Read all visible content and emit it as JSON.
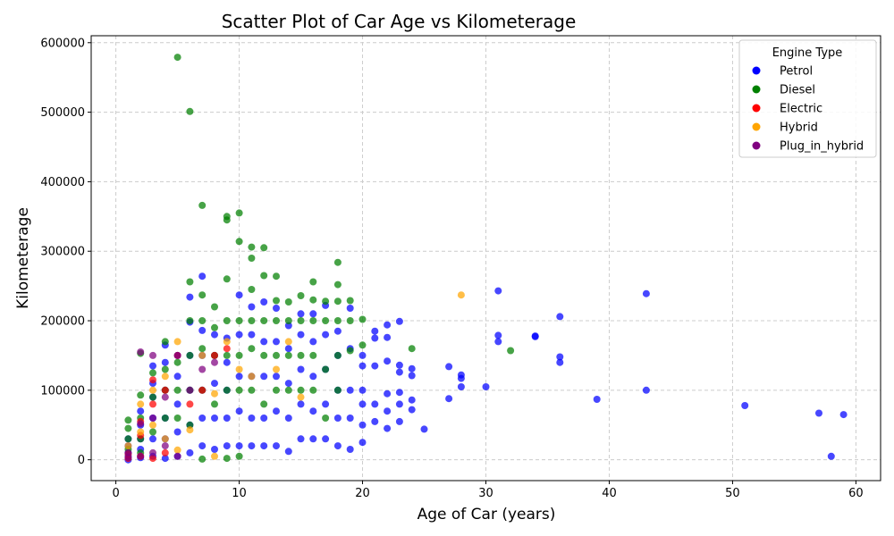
{
  "chart_data": {
    "type": "scatter",
    "title": "Scatter Plot of Car Age vs Kilometerage",
    "xlabel": "Age of Car (years)",
    "ylabel": "Kilometerage",
    "xlim": [
      -2,
      62
    ],
    "ylim": [
      -30000,
      610000
    ],
    "xticks": [
      "0",
      "10",
      "20",
      "30",
      "40",
      "50",
      "60"
    ],
    "yticks": [
      "0",
      "100000",
      "200000",
      "300000",
      "400000",
      "500000",
      "600000"
    ],
    "grid": true,
    "legend": {
      "title": "Engine Type",
      "placement": "top-right"
    },
    "series": [
      {
        "name": "Petrol",
        "color": "#0000ff",
        "points": [
          [
            1,
            0
          ],
          [
            1,
            5000
          ],
          [
            1,
            10000
          ],
          [
            1,
            20000
          ],
          [
            1,
            30000
          ],
          [
            2,
            3000
          ],
          [
            2,
            15000
          ],
          [
            2,
            30000
          ],
          [
            2,
            50000
          ],
          [
            2,
            70000
          ],
          [
            3,
            5000
          ],
          [
            3,
            30000
          ],
          [
            3,
            60000
          ],
          [
            3,
            90000
          ],
          [
            3,
            110000
          ],
          [
            3,
            135000
          ],
          [
            4,
            2000
          ],
          [
            4,
            30000
          ],
          [
            4,
            60000
          ],
          [
            4,
            100000
          ],
          [
            4,
            140000
          ],
          [
            4,
            165000
          ],
          [
            5,
            5000
          ],
          [
            5,
            40000
          ],
          [
            5,
            80000
          ],
          [
            5,
            120000
          ],
          [
            5,
            150000
          ],
          [
            6,
            10000
          ],
          [
            6,
            50000
          ],
          [
            6,
            100000
          ],
          [
            6,
            150000
          ],
          [
            6,
            198000
          ],
          [
            6,
            234000
          ],
          [
            7,
            20000
          ],
          [
            7,
            60000
          ],
          [
            7,
            100000
          ],
          [
            7,
            150000
          ],
          [
            7,
            186000
          ],
          [
            7,
            264000
          ],
          [
            8,
            15000
          ],
          [
            8,
            60000
          ],
          [
            8,
            110000
          ],
          [
            8,
            150000
          ],
          [
            8,
            180000
          ],
          [
            9,
            20000
          ],
          [
            9,
            60000
          ],
          [
            9,
            100000
          ],
          [
            9,
            140000
          ],
          [
            9,
            175000
          ],
          [
            10,
            20000
          ],
          [
            10,
            70000
          ],
          [
            10,
            120000
          ],
          [
            10,
            180000
          ],
          [
            10,
            237000
          ],
          [
            11,
            20000
          ],
          [
            11,
            60000
          ],
          [
            11,
            120000
          ],
          [
            11,
            180000
          ],
          [
            11,
            220000
          ],
          [
            12,
            20000
          ],
          [
            12,
            60000
          ],
          [
            12,
            120000
          ],
          [
            12,
            170000
          ],
          [
            12,
            227000
          ],
          [
            13,
            20000
          ],
          [
            13,
            70000
          ],
          [
            13,
            120000
          ],
          [
            13,
            170000
          ],
          [
            13,
            218000
          ],
          [
            14,
            12000
          ],
          [
            14,
            60000
          ],
          [
            14,
            110000
          ],
          [
            14,
            160000
          ],
          [
            14,
            193000
          ],
          [
            15,
            30000
          ],
          [
            15,
            80000
          ],
          [
            15,
            130000
          ],
          [
            15,
            180000
          ],
          [
            15,
            210000
          ],
          [
            16,
            30000
          ],
          [
            16,
            70000
          ],
          [
            16,
            120000
          ],
          [
            16,
            170000
          ],
          [
            16,
            210000
          ],
          [
            17,
            30000
          ],
          [
            17,
            80000
          ],
          [
            17,
            130000
          ],
          [
            17,
            180000
          ],
          [
            17,
            222000
          ],
          [
            18,
            20000
          ],
          [
            18,
            60000
          ],
          [
            18,
            100000
          ],
          [
            18,
            150000
          ],
          [
            18,
            185000
          ],
          [
            19,
            15000
          ],
          [
            19,
            60000
          ],
          [
            19,
            100000
          ],
          [
            19,
            160000
          ],
          [
            19,
            218000
          ],
          [
            20,
            25000
          ],
          [
            20,
            50000
          ],
          [
            20,
            80000
          ],
          [
            20,
            100000
          ],
          [
            20,
            135000
          ],
          [
            20,
            150000
          ],
          [
            21,
            55000
          ],
          [
            21,
            80000
          ],
          [
            21,
            135000
          ],
          [
            21,
            175000
          ],
          [
            21,
            185000
          ],
          [
            22,
            45000
          ],
          [
            22,
            70000
          ],
          [
            22,
            95000
          ],
          [
            22,
            142000
          ],
          [
            22,
            176000
          ],
          [
            22,
            194000
          ],
          [
            23,
            55000
          ],
          [
            23,
            80000
          ],
          [
            23,
            97000
          ],
          [
            23,
            126000
          ],
          [
            23,
            136000
          ],
          [
            23,
            199000
          ],
          [
            24,
            72000
          ],
          [
            24,
            86000
          ],
          [
            24,
            121000
          ],
          [
            24,
            131000
          ],
          [
            25,
            44000
          ],
          [
            27,
            88000
          ],
          [
            27,
            134000
          ],
          [
            28,
            105000
          ],
          [
            28,
            117000
          ],
          [
            28,
            122000
          ],
          [
            30,
            105000
          ],
          [
            31,
            170000
          ],
          [
            31,
            179000
          ],
          [
            31,
            243000
          ],
          [
            34,
            177000
          ],
          [
            34,
            178000
          ],
          [
            36,
            140000
          ],
          [
            36,
            148000
          ],
          [
            36,
            206000
          ],
          [
            39,
            87000
          ],
          [
            43,
            100000
          ],
          [
            43,
            239000
          ],
          [
            51,
            78000
          ],
          [
            57,
            67000
          ],
          [
            58,
            5000
          ],
          [
            59,
            65000
          ]
        ]
      },
      {
        "name": "Diesel",
        "color": "#008000",
        "points": [
          [
            1,
            15000
          ],
          [
            1,
            30000
          ],
          [
            1,
            45000
          ],
          [
            1,
            57000
          ],
          [
            2,
            10000
          ],
          [
            2,
            30000
          ],
          [
            2,
            60000
          ],
          [
            2,
            93000
          ],
          [
            2,
            153000
          ],
          [
            3,
            40000
          ],
          [
            3,
            90000
          ],
          [
            3,
            125000
          ],
          [
            4,
            60000
          ],
          [
            4,
            100000
          ],
          [
            4,
            130000
          ],
          [
            4,
            170000
          ],
          [
            5,
            60000
          ],
          [
            5,
            100000
          ],
          [
            5,
            140000
          ],
          [
            5,
            579000
          ],
          [
            6,
            50000
          ],
          [
            6,
            100000
          ],
          [
            6,
            150000
          ],
          [
            6,
            200000
          ],
          [
            6,
            256000
          ],
          [
            6,
            501000
          ],
          [
            7,
            1000
          ],
          [
            7,
            100000
          ],
          [
            7,
            160000
          ],
          [
            7,
            200000
          ],
          [
            7,
            237000
          ],
          [
            7,
            366000
          ],
          [
            8,
            80000
          ],
          [
            8,
            150000
          ],
          [
            8,
            190000
          ],
          [
            8,
            220000
          ],
          [
            9,
            2000
          ],
          [
            9,
            100000
          ],
          [
            9,
            150000
          ],
          [
            9,
            200000
          ],
          [
            9,
            260000
          ],
          [
            9,
            345000
          ],
          [
            9,
            350000
          ],
          [
            10,
            5000
          ],
          [
            10,
            100000
          ],
          [
            10,
            150000
          ],
          [
            10,
            200000
          ],
          [
            10,
            314000
          ],
          [
            10,
            355000
          ],
          [
            11,
            100000
          ],
          [
            11,
            160000
          ],
          [
            11,
            200000
          ],
          [
            11,
            245000
          ],
          [
            11,
            290000
          ],
          [
            11,
            306000
          ],
          [
            12,
            80000
          ],
          [
            12,
            150000
          ],
          [
            12,
            200000
          ],
          [
            12,
            265000
          ],
          [
            12,
            305000
          ],
          [
            13,
            100000
          ],
          [
            13,
            150000
          ],
          [
            13,
            200000
          ],
          [
            13,
            229000
          ],
          [
            13,
            264000
          ],
          [
            14,
            100000
          ],
          [
            14,
            150000
          ],
          [
            14,
            200000
          ],
          [
            14,
            227000
          ],
          [
            15,
            100000
          ],
          [
            15,
            150000
          ],
          [
            15,
            200000
          ],
          [
            15,
            236000
          ],
          [
            16,
            100000
          ],
          [
            16,
            150000
          ],
          [
            16,
            200000
          ],
          [
            16,
            230000
          ],
          [
            16,
            256000
          ],
          [
            17,
            60000
          ],
          [
            17,
            130000
          ],
          [
            17,
            200000
          ],
          [
            17,
            228000
          ],
          [
            18,
            100000
          ],
          [
            18,
            150000
          ],
          [
            18,
            200000
          ],
          [
            18,
            228000
          ],
          [
            18,
            252000
          ],
          [
            18,
            284000
          ],
          [
            19,
            157000
          ],
          [
            19,
            200000
          ],
          [
            19,
            229000
          ],
          [
            20,
            165000
          ],
          [
            20,
            202000
          ],
          [
            24,
            160000
          ],
          [
            32,
            157000
          ]
        ]
      },
      {
        "name": "Electric",
        "color": "#ff0000",
        "points": [
          [
            1,
            2000
          ],
          [
            1,
            8000
          ],
          [
            2,
            5000
          ],
          [
            2,
            35000
          ],
          [
            2,
            55000
          ],
          [
            3,
            2000
          ],
          [
            3,
            80000
          ],
          [
            3,
            115000
          ],
          [
            4,
            10000
          ],
          [
            4,
            100000
          ],
          [
            5,
            150000
          ],
          [
            6,
            80000
          ],
          [
            7,
            100000
          ],
          [
            8,
            150000
          ],
          [
            9,
            160000
          ]
        ]
      },
      {
        "name": "Hybrid",
        "color": "#ffa500",
        "points": [
          [
            1,
            20000
          ],
          [
            2,
            40000
          ],
          [
            2,
            80000
          ],
          [
            3,
            50000
          ],
          [
            3,
            100000
          ],
          [
            4,
            30000
          ],
          [
            4,
            120000
          ],
          [
            5,
            170000
          ],
          [
            5,
            14000
          ],
          [
            6,
            43000
          ],
          [
            7,
            150000
          ],
          [
            8,
            5000
          ],
          [
            8,
            95000
          ],
          [
            9,
            170000
          ],
          [
            10,
            130000
          ],
          [
            11,
            120000
          ],
          [
            13,
            130000
          ],
          [
            14,
            170000
          ],
          [
            15,
            90000
          ],
          [
            28,
            237000
          ]
        ]
      },
      {
        "name": "Plug_in_hybrid",
        "color": "#800080",
        "points": [
          [
            1,
            3000
          ],
          [
            1,
            10000
          ],
          [
            2,
            5000
          ],
          [
            2,
            52000
          ],
          [
            2,
            155000
          ],
          [
            3,
            10000
          ],
          [
            3,
            60000
          ],
          [
            3,
            150000
          ],
          [
            4,
            20000
          ],
          [
            4,
            90000
          ],
          [
            5,
            150000
          ],
          [
            5,
            5000
          ],
          [
            6,
            100000
          ],
          [
            7,
            130000
          ],
          [
            8,
            140000
          ]
        ]
      }
    ]
  }
}
